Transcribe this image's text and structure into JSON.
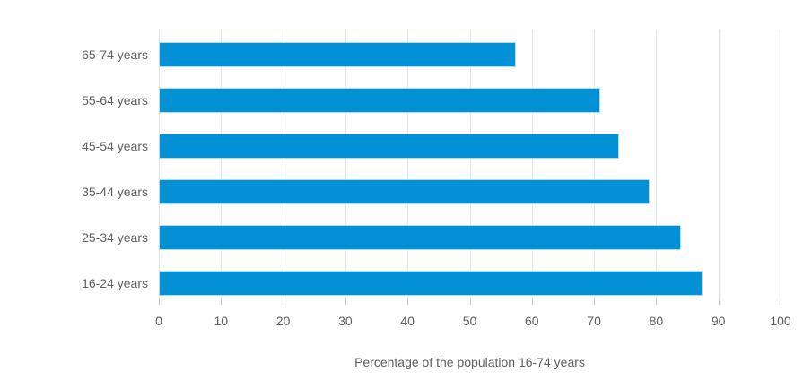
{
  "chart_data": {
    "type": "bar",
    "orientation": "horizontal",
    "categories": [
      "65-74 years",
      "55-64 years",
      "45-54 years",
      "35-44 years",
      "25-34 years",
      "16-24 years"
    ],
    "values": [
      57.5,
      71,
      74,
      79,
      84,
      87.5
    ],
    "xlabel": "Percentage of the population 16-74 years",
    "ylabel": "",
    "xlim": [
      0,
      100
    ],
    "xticks": [
      0,
      10,
      20,
      30,
      40,
      50,
      60,
      70,
      80,
      90,
      100
    ],
    "grid": true,
    "legend": false,
    "colors": {
      "bar_fill": "#0291d5",
      "bar_border": "#b5ddf2",
      "gridline": "#e6e6e6",
      "tick": "#c6c6c6",
      "text": "#5f5f5f",
      "background": "#ffffff"
    }
  }
}
